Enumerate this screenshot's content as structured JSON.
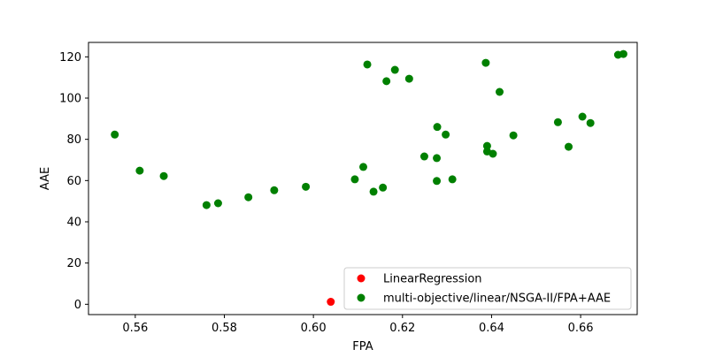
{
  "chart_data": {
    "type": "scatter",
    "title": "",
    "xlabel": "FPA",
    "ylabel": "AAE",
    "xlim": [
      0.5495,
      0.6727
    ],
    "ylim": [
      -5,
      127
    ],
    "xticks": [
      0.56,
      0.58,
      0.6,
      0.62,
      0.64,
      0.66
    ],
    "xtick_labels": [
      "0.56",
      "0.58",
      "0.60",
      "0.62",
      "0.64",
      "0.66"
    ],
    "yticks": [
      0,
      20,
      40,
      60,
      80,
      100,
      120
    ],
    "ytick_labels": [
      "0",
      "20",
      "40",
      "60",
      "80",
      "100",
      "120"
    ],
    "grid": false,
    "legend_position": "lower-right",
    "series": [
      {
        "name": "LinearRegression",
        "color": "#ff0000",
        "points": [
          [
            0.6039,
            1.2
          ]
        ]
      },
      {
        "name": "multi-objective/linear/NSGA-II/FPA+AAE",
        "color": "#008000",
        "points": [
          [
            0.5554,
            82.3
          ],
          [
            0.561,
            64.8
          ],
          [
            0.5664,
            62.2
          ],
          [
            0.576,
            48.1
          ],
          [
            0.5786,
            49.0
          ],
          [
            0.5854,
            51.9
          ],
          [
            0.5912,
            55.3
          ],
          [
            0.5983,
            57.0
          ],
          [
            0.6093,
            60.6
          ],
          [
            0.6112,
            66.6
          ],
          [
            0.6135,
            54.6
          ],
          [
            0.6156,
            56.6
          ],
          [
            0.6121,
            116.3
          ],
          [
            0.6164,
            108.2
          ],
          [
            0.6183,
            113.7
          ],
          [
            0.6215,
            109.4
          ],
          [
            0.6249,
            71.7
          ],
          [
            0.6277,
            70.9
          ],
          [
            0.6278,
            86.0
          ],
          [
            0.6277,
            59.8
          ],
          [
            0.6297,
            82.3
          ],
          [
            0.6312,
            60.6
          ],
          [
            0.6387,
            117.1
          ],
          [
            0.639,
            76.8
          ],
          [
            0.639,
            74.1
          ],
          [
            0.6403,
            73.0
          ],
          [
            0.6418,
            103.0
          ],
          [
            0.6449,
            81.9
          ],
          [
            0.6549,
            88.3
          ],
          [
            0.6573,
            76.4
          ],
          [
            0.6604,
            91.0
          ],
          [
            0.6622,
            87.9
          ],
          [
            0.6684,
            121.0
          ],
          [
            0.6696,
            121.4
          ]
        ]
      }
    ]
  }
}
